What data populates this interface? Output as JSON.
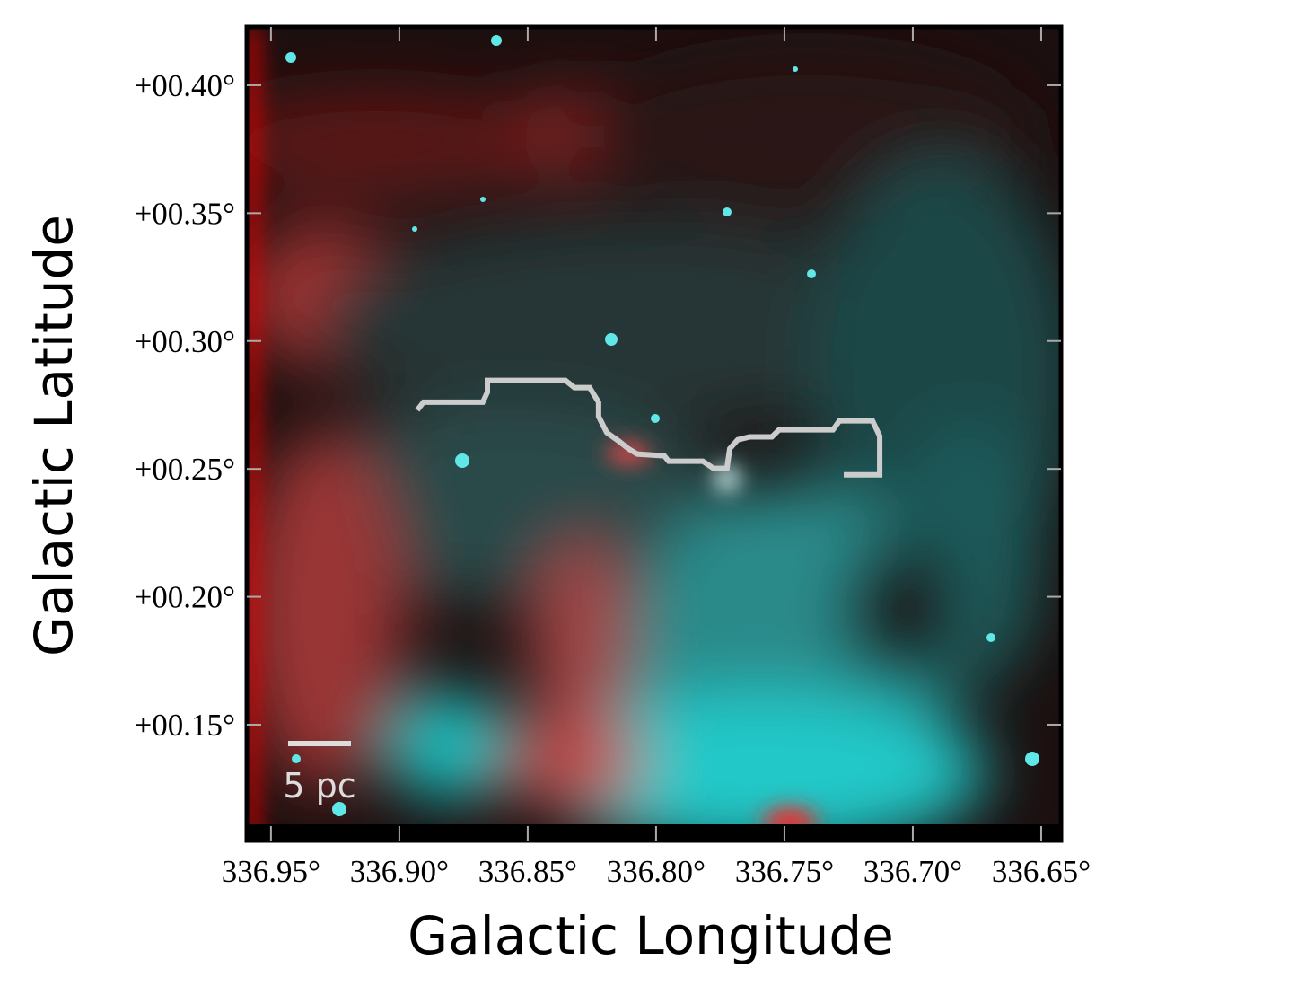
{
  "chart_data": {
    "type": "image",
    "xlabel": "Galactic Longitude",
    "ylabel": "Galactic Latitude",
    "xlim": [
      336.9594,
      336.6423
    ],
    "ylim": [
      0.1047,
      0.4228
    ],
    "xticks": [
      {
        "value": 336.95,
        "label": "336.95°"
      },
      {
        "value": 336.9,
        "label": "336.90°"
      },
      {
        "value": 336.85,
        "label": "336.85°"
      },
      {
        "value": 336.8,
        "label": "336.80°"
      },
      {
        "value": 336.75,
        "label": "336.75°"
      },
      {
        "value": 336.7,
        "label": "336.70°"
      },
      {
        "value": 336.65,
        "label": "336.65°"
      }
    ],
    "yticks": [
      {
        "value": 0.15,
        "label": "+00.15°"
      },
      {
        "value": 0.2,
        "label": "+00.20°"
      },
      {
        "value": 0.25,
        "label": "+00.25°"
      },
      {
        "value": 0.3,
        "label": "+00.30°"
      },
      {
        "value": 0.35,
        "label": "+00.35°"
      },
      {
        "value": 0.4,
        "label": "+00.40°"
      }
    ],
    "series": [
      {
        "color": "#cccccc",
        "x": [
          336.893,
          336.8906,
          336.8675,
          336.8657,
          336.8657,
          336.8353,
          336.8318,
          336.8259,
          336.8224,
          336.8224,
          336.8192,
          336.8143,
          336.8108,
          336.8073,
          336.7968,
          336.7951,
          336.7818,
          336.7776,
          336.7724,
          336.7713,
          336.7682,
          336.7636,
          336.7549,
          336.7521,
          336.7311,
          336.7286,
          336.7157,
          336.7129,
          336.7129,
          336.7269
        ],
        "y": [
          0.273,
          0.2761,
          0.2761,
          0.28,
          0.2846,
          0.2846,
          0.2818,
          0.2818,
          0.2761,
          0.2705,
          0.2642,
          0.2607,
          0.2579,
          0.2558,
          0.2551,
          0.253,
          0.253,
          0.2502,
          0.2502,
          0.2579,
          0.2614,
          0.2625,
          0.2625,
          0.2653,
          0.2653,
          0.2688,
          0.2688,
          0.2628,
          0.2477,
          0.2477
        ]
      }
    ],
    "scale_bar": "5 pc"
  }
}
